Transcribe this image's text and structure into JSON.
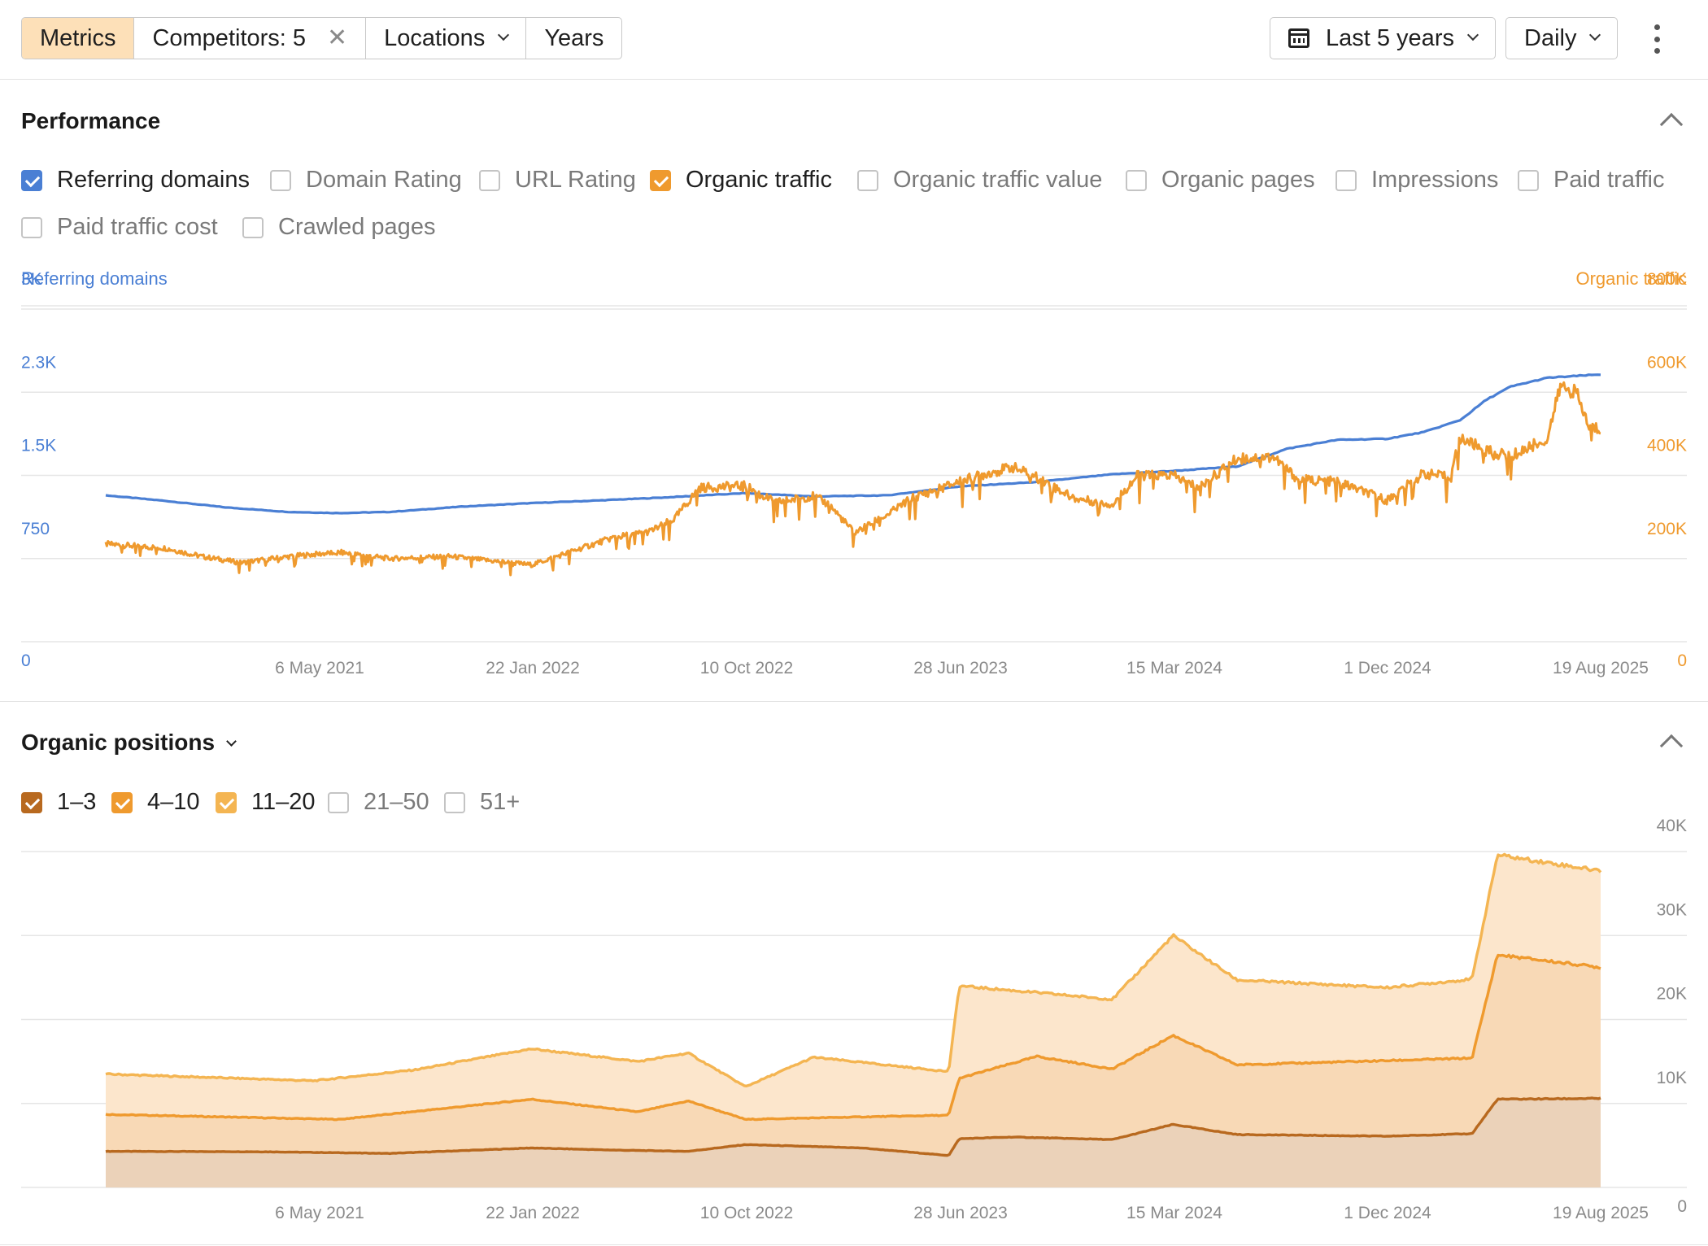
{
  "toolbar": {
    "segments": [
      "Metrics",
      "Competitors: 5",
      "Locations",
      "Years"
    ],
    "competitors_close": "✕",
    "range": "Last 5 years",
    "interval": "Daily"
  },
  "performance": {
    "title": "Performance",
    "checkboxes": [
      {
        "label": "Referring domains",
        "checked": true,
        "color": "#4a7fd4"
      },
      {
        "label": "Domain Rating",
        "checked": false
      },
      {
        "label": "URL Rating",
        "checked": false
      },
      {
        "label": "Organic traffic",
        "checked": true,
        "color": "#ef9a2e"
      },
      {
        "label": "Organic traffic value",
        "checked": false
      },
      {
        "label": "Organic pages",
        "checked": false
      },
      {
        "label": "Impressions",
        "checked": false
      },
      {
        "label": "Paid traffic",
        "checked": false
      },
      {
        "label": "Paid traffic cost",
        "checked": false
      },
      {
        "label": "Crawled pages",
        "checked": false
      }
    ]
  },
  "positions": {
    "title": "Organic positions",
    "checkboxes": [
      {
        "label": "1–3",
        "checked": true,
        "color": "#b8691f"
      },
      {
        "label": "4–10",
        "checked": true,
        "color": "#ef9a2e"
      },
      {
        "label": "11–20",
        "checked": true,
        "color": "#f4b552"
      },
      {
        "label": "21–50",
        "checked": false
      },
      {
        "label": "51+",
        "checked": false
      }
    ]
  },
  "chart_data": [
    {
      "type": "line",
      "x_tick_labels": [
        "6 May 2021",
        "22 Jan 2022",
        "10 Oct 2022",
        "28 Jun 2023",
        "15 Mar 2024",
        "1 Dec 2024",
        "19 Aug 2025"
      ],
      "x_range": [
        "2020-08-20",
        "2025-08-19"
      ],
      "y_left": {
        "label": "Referring domains",
        "ticks": [
          "0",
          "750",
          "1.5K",
          "2.3K",
          "3K"
        ],
        "range": [
          0,
          3000
        ]
      },
      "y_right": {
        "label": "Organic traffic",
        "ticks": [
          "0",
          "200K",
          "400K",
          "600K",
          "800K"
        ],
        "range": [
          0,
          800000
        ]
      },
      "series": [
        {
          "name": "Referring domains",
          "axis": "left",
          "color": "#4a7fd4",
          "points": [
            [
              "2020-08-20",
              1320
            ],
            [
              "2020-11-01",
              1270
            ],
            [
              "2021-01-15",
              1210
            ],
            [
              "2021-04-01",
              1170
            ],
            [
              "2021-06-01",
              1160
            ],
            [
              "2021-08-01",
              1170
            ],
            [
              "2021-11-01",
              1220
            ],
            [
              "2022-01-22",
              1250
            ],
            [
              "2022-04-01",
              1270
            ],
            [
              "2022-07-01",
              1300
            ],
            [
              "2022-10-10",
              1340
            ],
            [
              "2023-01-01",
              1310
            ],
            [
              "2023-04-01",
              1320
            ],
            [
              "2023-06-28",
              1400
            ],
            [
              "2023-10-01",
              1440
            ],
            [
              "2024-01-01",
              1510
            ],
            [
              "2024-03-15",
              1540
            ],
            [
              "2024-06-01",
              1580
            ],
            [
              "2024-08-01",
              1740
            ],
            [
              "2024-10-01",
              1820
            ],
            [
              "2024-12-01",
              1830
            ],
            [
              "2025-01-15",
              1890
            ],
            [
              "2025-03-01",
              2000
            ],
            [
              "2025-04-01",
              2180
            ],
            [
              "2025-05-01",
              2300
            ],
            [
              "2025-06-15",
              2380
            ],
            [
              "2025-08-19",
              2410
            ]
          ]
        },
        {
          "name": "Organic traffic",
          "axis": "right",
          "color": "#ef9a2e",
          "points": [
            [
              "2020-08-20",
              235000
            ],
            [
              "2020-11-01",
              225000
            ],
            [
              "2020-12-15",
              205000
            ],
            [
              "2021-02-01",
              190000
            ],
            [
              "2021-04-01",
              205000
            ],
            [
              "2021-06-01",
              215000
            ],
            [
              "2021-08-01",
              200000
            ],
            [
              "2021-10-15",
              205000
            ],
            [
              "2021-12-01",
              195000
            ],
            [
              "2022-01-22",
              185000
            ],
            [
              "2022-03-01",
              210000
            ],
            [
              "2022-05-01",
              250000
            ],
            [
              "2022-06-15",
              265000
            ],
            [
              "2022-07-15",
              295000
            ],
            [
              "2022-08-15",
              370000
            ],
            [
              "2022-10-10",
              375000
            ],
            [
              "2022-11-15",
              335000
            ],
            [
              "2023-01-01",
              350000
            ],
            [
              "2023-01-20",
              330000
            ],
            [
              "2023-02-20",
              262000
            ],
            [
              "2023-04-01",
              305000
            ],
            [
              "2023-05-01",
              345000
            ],
            [
              "2023-06-28",
              385000
            ],
            [
              "2023-08-01",
              405000
            ],
            [
              "2023-09-01",
              420000
            ],
            [
              "2023-10-01",
              395000
            ],
            [
              "2023-11-15",
              345000
            ],
            [
              "2024-01-01",
              330000
            ],
            [
              "2024-02-01",
              400000
            ],
            [
              "2024-03-15",
              400000
            ],
            [
              "2024-04-15",
              370000
            ],
            [
              "2024-06-01",
              440000
            ],
            [
              "2024-07-15",
              445000
            ],
            [
              "2024-08-15",
              390000
            ],
            [
              "2024-10-01",
              385000
            ],
            [
              "2024-12-01",
              340000
            ],
            [
              "2025-01-15",
              405000
            ],
            [
              "2025-02-15",
              395000
            ],
            [
              "2025-03-01",
              490000
            ],
            [
              "2025-04-01",
              460000
            ],
            [
              "2025-05-01",
              445000
            ],
            [
              "2025-06-15",
              490000
            ],
            [
              "2025-07-01",
              615000
            ],
            [
              "2025-07-20",
              600000
            ],
            [
              "2025-08-05",
              515000
            ],
            [
              "2025-08-19",
              512000
            ]
          ]
        }
      ]
    },
    {
      "type": "area",
      "stacked": true,
      "x_tick_labels": [
        "6 May 2021",
        "22 Jan 2022",
        "10 Oct 2022",
        "28 Jun 2023",
        "15 Mar 2024",
        "1 Dec 2024",
        "19 Aug 2025"
      ],
      "x_range": [
        "2020-08-20",
        "2025-08-19"
      ],
      "y": {
        "ticks": [
          "0",
          "10K",
          "20K",
          "30K",
          "40K"
        ],
        "range": [
          0,
          40000
        ]
      },
      "series": [
        {
          "name": "1–3",
          "color": "#b8691f",
          "points": [
            [
              "2020-08-20",
              4300
            ],
            [
              "2021-03-01",
              4250
            ],
            [
              "2021-08-01",
              4050
            ],
            [
              "2022-01-22",
              4700
            ],
            [
              "2022-05-01",
              4450
            ],
            [
              "2022-08-01",
              4300
            ],
            [
              "2022-10-10",
              5100
            ],
            [
              "2023-03-01",
              4700
            ],
            [
              "2023-06-15",
              3800
            ],
            [
              "2023-06-28",
              5800
            ],
            [
              "2023-09-01",
              6000
            ],
            [
              "2024-01-01",
              5700
            ],
            [
              "2024-03-15",
              7500
            ],
            [
              "2024-06-01",
              6300
            ],
            [
              "2024-12-01",
              6100
            ],
            [
              "2025-03-15",
              6400
            ],
            [
              "2025-04-15",
              10500
            ],
            [
              "2025-08-19",
              10600
            ]
          ]
        },
        {
          "name": "4–10",
          "color": "#ef9a2e",
          "points": [
            [
              "2020-08-20",
              8700
            ],
            [
              "2021-06-01",
              8100
            ],
            [
              "2022-01-22",
              10500
            ],
            [
              "2022-06-01",
              9000
            ],
            [
              "2022-08-01",
              10300
            ],
            [
              "2022-10-10",
              8100
            ],
            [
              "2023-03-01",
              8400
            ],
            [
              "2023-06-15",
              8600
            ],
            [
              "2023-06-28",
              13000
            ],
            [
              "2023-10-01",
              15600
            ],
            [
              "2024-01-01",
              14100
            ],
            [
              "2024-03-15",
              18100
            ],
            [
              "2024-06-01",
              14600
            ],
            [
              "2024-12-01",
              15100
            ],
            [
              "2025-03-15",
              15400
            ],
            [
              "2025-04-15",
              27700
            ],
            [
              "2025-08-19",
              26200
            ]
          ]
        },
        {
          "name": "11–20",
          "color": "#f4b552",
          "points": [
            [
              "2020-08-20",
              13500
            ],
            [
              "2021-05-01",
              12700
            ],
            [
              "2021-09-01",
              14000
            ],
            [
              "2022-01-22",
              16500
            ],
            [
              "2022-06-01",
              15000
            ],
            [
              "2022-08-01",
              16000
            ],
            [
              "2022-10-10",
              12000
            ],
            [
              "2023-01-01",
              15500
            ],
            [
              "2023-06-15",
              13800
            ],
            [
              "2023-06-28",
              24000
            ],
            [
              "2023-10-01",
              23200
            ],
            [
              "2024-01-01",
              22400
            ],
            [
              "2024-03-15",
              30000
            ],
            [
              "2024-06-01",
              24700
            ],
            [
              "2024-12-01",
              23800
            ],
            [
              "2025-03-15",
              24800
            ],
            [
              "2025-04-15",
              39600
            ],
            [
              "2025-08-19",
              37700
            ]
          ]
        }
      ]
    }
  ]
}
